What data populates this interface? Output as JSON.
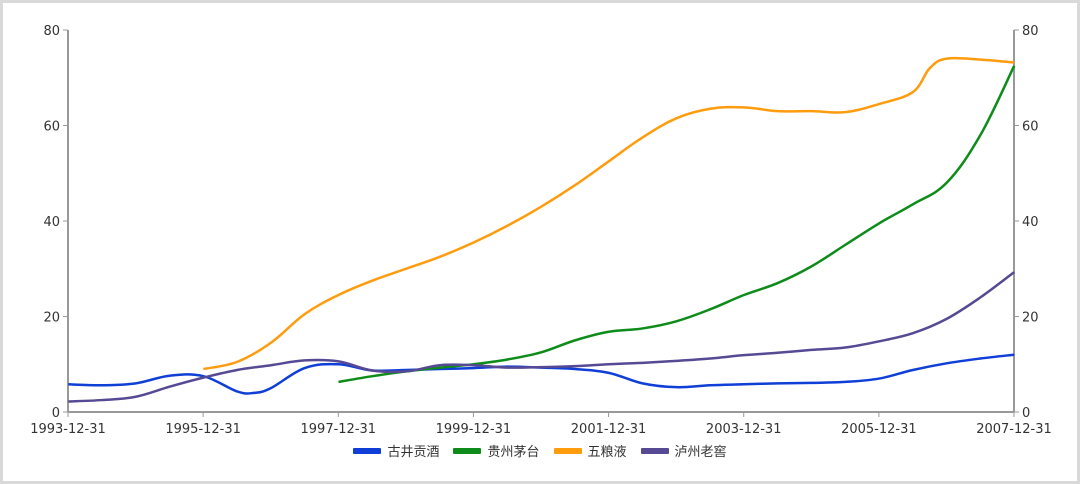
{
  "chart_data": {
    "type": "line",
    "title": "",
    "xlabel": "",
    "ylabel": "",
    "ylim": [
      0,
      80
    ],
    "y_right_ylim": [
      0,
      80
    ],
    "yticks": [
      0,
      20,
      40,
      60,
      80
    ],
    "grid": false,
    "legend_position": "bottom",
    "x_tick_labels": [
      "1993-12-31",
      "1995-12-31",
      "1997-12-31",
      "1999-12-31",
      "2001-12-31",
      "2003-12-31",
      "2005-12-31",
      "2007-12-31"
    ],
    "x_range": [
      1993.997,
      2007.997
    ],
    "series": [
      {
        "name": "古井贡酒",
        "color": "#0f3fd6",
        "points": [
          [
            1994.0,
            5.8
          ],
          [
            1994.5,
            5.6
          ],
          [
            1995.0,
            6.0
          ],
          [
            1995.5,
            7.6
          ],
          [
            1996.0,
            7.5
          ],
          [
            1996.5,
            4.3
          ],
          [
            1996.75,
            4.0
          ],
          [
            1997.0,
            5.0
          ],
          [
            1997.5,
            9.2
          ],
          [
            1998.0,
            10.0
          ],
          [
            1998.5,
            8.7
          ],
          [
            1999.0,
            8.8
          ],
          [
            1999.5,
            9.0
          ],
          [
            2000.0,
            9.2
          ],
          [
            2000.5,
            9.5
          ],
          [
            2001.0,
            9.3
          ],
          [
            2001.5,
            9.0
          ],
          [
            2002.0,
            8.2
          ],
          [
            2002.5,
            6.0
          ],
          [
            2003.0,
            5.2
          ],
          [
            2003.5,
            5.6
          ],
          [
            2004.0,
            5.8
          ],
          [
            2004.5,
            6.0
          ],
          [
            2005.0,
            6.1
          ],
          [
            2005.5,
            6.3
          ],
          [
            2006.0,
            7.0
          ],
          [
            2006.5,
            8.8
          ],
          [
            2007.0,
            10.2
          ],
          [
            2007.5,
            11.2
          ],
          [
            2008.0,
            12.0
          ]
        ]
      },
      {
        "name": "贵州茅台",
        "color": "#0e8c1a",
        "points": [
          [
            1998.0,
            6.3
          ],
          [
            1998.5,
            7.5
          ],
          [
            1999.0,
            8.5
          ],
          [
            1999.5,
            9.3
          ],
          [
            2000.0,
            10.0
          ],
          [
            2000.5,
            11.0
          ],
          [
            2001.0,
            12.5
          ],
          [
            2001.5,
            15.0
          ],
          [
            2002.0,
            16.8
          ],
          [
            2002.5,
            17.5
          ],
          [
            2003.0,
            19.0
          ],
          [
            2003.5,
            21.5
          ],
          [
            2004.0,
            24.5
          ],
          [
            2004.5,
            27.0
          ],
          [
            2005.0,
            30.5
          ],
          [
            2005.5,
            35.0
          ],
          [
            2006.0,
            39.5
          ],
          [
            2006.5,
            43.5
          ],
          [
            2007.0,
            48.0
          ],
          [
            2007.5,
            58.0
          ],
          [
            2008.0,
            72.5
          ]
        ]
      },
      {
        "name": "五粮液",
        "color": "#ff9c0e",
        "points": [
          [
            1996.0,
            9.0
          ],
          [
            1996.5,
            10.5
          ],
          [
            1997.0,
            14.5
          ],
          [
            1997.5,
            20.5
          ],
          [
            1998.0,
            24.5
          ],
          [
            1998.5,
            27.5
          ],
          [
            1999.0,
            30.0
          ],
          [
            1999.5,
            32.5
          ],
          [
            2000.0,
            35.5
          ],
          [
            2000.5,
            39.0
          ],
          [
            2001.0,
            43.0
          ],
          [
            2001.5,
            47.5
          ],
          [
            2002.0,
            52.5
          ],
          [
            2002.5,
            57.5
          ],
          [
            2003.0,
            61.5
          ],
          [
            2003.5,
            63.5
          ],
          [
            2004.0,
            63.8
          ],
          [
            2004.5,
            63.0
          ],
          [
            2005.0,
            63.0
          ],
          [
            2005.5,
            62.8
          ],
          [
            2006.0,
            64.5
          ],
          [
            2006.5,
            67.0
          ],
          [
            2006.75,
            72.0
          ],
          [
            2007.0,
            74.0
          ],
          [
            2007.5,
            73.8
          ],
          [
            2008.0,
            73.2
          ]
        ]
      },
      {
        "name": "泸州老窖",
        "color": "#574a94",
        "points": [
          [
            1994.0,
            2.2
          ],
          [
            1994.5,
            2.5
          ],
          [
            1995.0,
            3.2
          ],
          [
            1995.5,
            5.3
          ],
          [
            1996.0,
            7.2
          ],
          [
            1996.5,
            8.8
          ],
          [
            1997.0,
            9.8
          ],
          [
            1997.5,
            10.8
          ],
          [
            1998.0,
            10.6
          ],
          [
            1998.5,
            8.7
          ],
          [
            1999.0,
            8.5
          ],
          [
            1999.5,
            9.8
          ],
          [
            2000.0,
            9.8
          ],
          [
            2000.5,
            9.3
          ],
          [
            2001.0,
            9.4
          ],
          [
            2001.5,
            9.6
          ],
          [
            2002.0,
            10.0
          ],
          [
            2002.5,
            10.3
          ],
          [
            2003.0,
            10.7
          ],
          [
            2003.5,
            11.2
          ],
          [
            2004.0,
            11.9
          ],
          [
            2004.5,
            12.4
          ],
          [
            2005.0,
            13.0
          ],
          [
            2005.5,
            13.5
          ],
          [
            2006.0,
            14.8
          ],
          [
            2006.5,
            16.5
          ],
          [
            2007.0,
            19.5
          ],
          [
            2007.5,
            24.0
          ],
          [
            2008.0,
            29.3
          ]
        ]
      }
    ]
  },
  "legend": {
    "items": [
      {
        "label": "古井贡酒",
        "color": "#0f3fd6"
      },
      {
        "label": "贵州茅台",
        "color": "#0e8c1a"
      },
      {
        "label": "五粮液",
        "color": "#ff9c0e"
      },
      {
        "label": "泸州老窖",
        "color": "#574a94"
      }
    ]
  }
}
